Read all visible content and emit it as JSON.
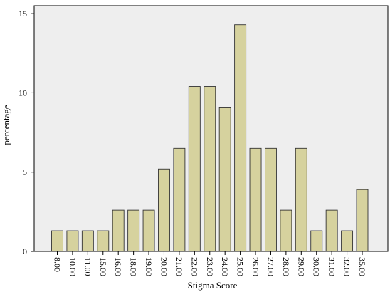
{
  "chart_data": {
    "type": "bar",
    "xlabel": "Stigma Score",
    "ylabel": "percentage",
    "ylim": [
      0,
      15.5
    ],
    "yticks": [
      0,
      5,
      10,
      15
    ],
    "categories": [
      "8.00",
      "10.00",
      "11.00",
      "15.00",
      "16.00",
      "18.00",
      "19.00",
      "20.00",
      "21.00",
      "22.00",
      "23.00",
      "24.00",
      "25.00",
      "26.00",
      "27.00",
      "28.00",
      "29.00",
      "30.00",
      "31.00",
      "32.00",
      "35.00"
    ],
    "values": [
      1.3,
      1.3,
      1.3,
      1.3,
      2.6,
      2.6,
      2.6,
      5.2,
      6.5,
      10.4,
      10.4,
      9.1,
      14.3,
      6.5,
      6.5,
      2.6,
      6.5,
      1.3,
      2.6,
      1.3,
      3.9
    ],
    "grid": false,
    "colors": {
      "plot_background": "#EEEEEE",
      "bar_fill": "#D6D29E",
      "bar_stroke": "#333333",
      "axis": "#000000"
    }
  }
}
